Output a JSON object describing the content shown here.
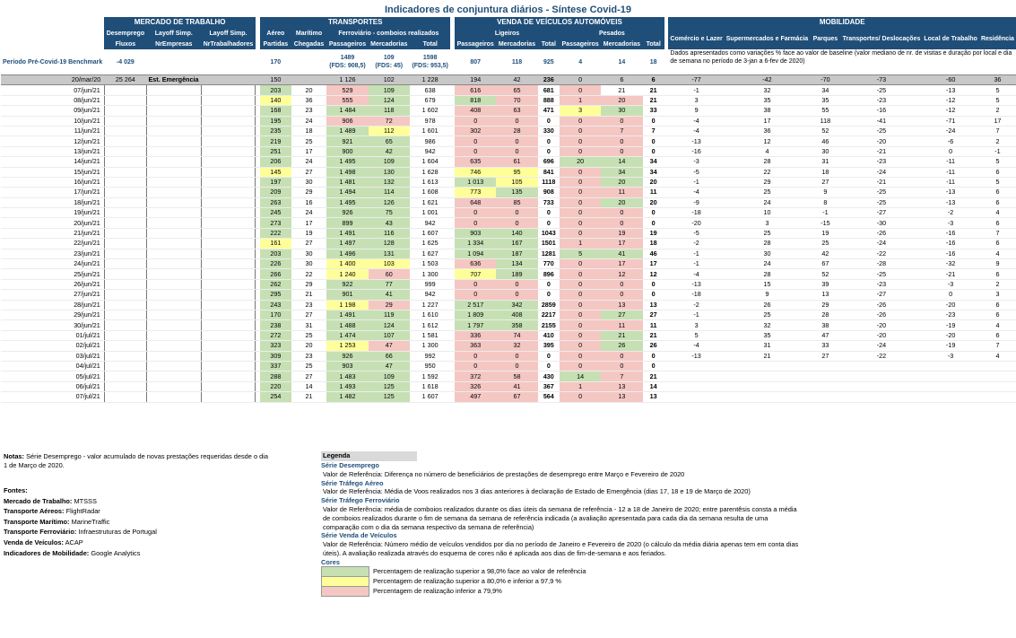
{
  "title": "Indicadores de conjuntura diários - Síntese Covid-19",
  "groups": {
    "mercado": "MERCADO DE TRABALHO",
    "transportes": "TRANSPORTES",
    "venda": "VENDA DE VEÍCULOS AUTOMÓVEIS",
    "mobilidade": "MOBILIDADE"
  },
  "headers": {
    "desemprego": "Desemprego",
    "layoff1": "Layoff Simp.",
    "layoff2": "Layoff Simp.",
    "fluxos": "Fluxos",
    "nrempresas": "NrEmpresas",
    "nrtrabalhadores": "NrTrabalhadores",
    "aereo": "Aéreo",
    "maritimo": "Marítimo",
    "ferroviario": "Ferroviário - comboios realizados",
    "partidas": "Partidas",
    "chegadas": "Chegadas",
    "passageiros": "Passageiros",
    "mercadorias": "Mercadorias",
    "total": "Total",
    "ligeiros": "Ligeiros",
    "pesados": "Pesados",
    "comercio": "Comércio e Lazer",
    "supermercados": "Supermercados e Farmácia",
    "parques": "Parques",
    "transportes_desl": "Transportes/ Deslocações",
    "local_trabalho": "Local de Trabalho",
    "residencia": "Residência"
  },
  "benchmark": {
    "label": "Período Pré-Covid-19 Benchmark",
    "fluxos": "-4 029",
    "aereo": "170",
    "fer_pass": "1489",
    "fer_pass_fds": "(FDS: 908,5)",
    "fer_merc": "109",
    "fer_merc_fds": "(FDS: 45)",
    "fer_total": "1598",
    "fer_total_fds": "(FDS: 953,5)",
    "lig_pass": "807",
    "lig_merc": "118",
    "lig_total": "925",
    "pes_pass": "4",
    "pes_merc": "14",
    "pes_total": "18",
    "mob_note": "Dados apresentados como variações % face ao valor de baseline (valor mediano de nr. de visitas e duração por local e dia de semana no período de 3-jan a 6-fev de 2020)"
  },
  "reference": {
    "date": "20/mar/20",
    "fluxos": "25 264",
    "estado": "Est. Emergência",
    "cells": [
      "150",
      "",
      "1 126",
      "102",
      "1 228",
      "194",
      "42",
      "236",
      "0",
      "6",
      "6",
      "-77",
      "-42",
      "-70",
      "-73",
      "-60",
      "36"
    ]
  },
  "rows": [
    {
      "d": "07/jun/21",
      "v": [
        "203",
        "20",
        "529",
        "109",
        "638",
        "616",
        "65",
        "681",
        "0",
        "21",
        "21",
        "-1",
        "32",
        "34",
        "-25",
        "-13",
        "5"
      ],
      "c": "g__rg_rr__r_"
    },
    {
      "d": "08/jun/21",
      "v": [
        "140",
        "36",
        "555",
        "124",
        "679",
        "818",
        "70",
        "888",
        "1",
        "20",
        "21",
        "3",
        "35",
        "35",
        "-23",
        "-12",
        "5"
      ],
      "c": "y__rg_gr__rr"
    },
    {
      "d": "09/jun/21",
      "v": [
        "168",
        "23",
        "1 484",
        "118",
        "1 602",
        "408",
        "63",
        "471",
        "3",
        "30",
        "33",
        "9",
        "38",
        "55",
        "-16",
        "-12",
        "2"
      ],
      "c": "g__gg_rr__yg"
    },
    {
      "d": "10/jun/21",
      "v": [
        "195",
        "24",
        "906",
        "72",
        "978",
        "0",
        "0",
        "0",
        "0",
        "0",
        "0",
        "-4",
        "17",
        "118",
        "-41",
        "-71",
        "17"
      ],
      "c": "g__rr_rr__rr"
    },
    {
      "d": "11/jun/21",
      "v": [
        "235",
        "18",
        "1 489",
        "112",
        "1 601",
        "302",
        "28",
        "330",
        "0",
        "7",
        "7",
        "-4",
        "36",
        "52",
        "-25",
        "-24",
        "7"
      ],
      "c": "g__gy_rr__rr"
    },
    {
      "d": "12/jun/21",
      "v": [
        "219",
        "25",
        "921",
        "65",
        "986",
        "0",
        "0",
        "0",
        "0",
        "0",
        "0",
        "-13",
        "12",
        "46",
        "-20",
        "-6",
        "2"
      ],
      "c": "g__gg_rr__rr"
    },
    {
      "d": "13/jun/21",
      "v": [
        "251",
        "17",
        "900",
        "42",
        "942",
        "0",
        "0",
        "0",
        "0",
        "0",
        "0",
        "-16",
        "4",
        "30",
        "-21",
        "0",
        "-1"
      ],
      "c": "g__gg_rr__rr"
    },
    {
      "d": "14/jun/21",
      "v": [
        "206",
        "24",
        "1 495",
        "109",
        "1 604",
        "635",
        "61",
        "696",
        "20",
        "14",
        "34",
        "-3",
        "28",
        "31",
        "-23",
        "-11",
        "5"
      ],
      "c": "g__gg_rr__gg"
    },
    {
      "d": "15/jun/21",
      "v": [
        "145",
        "27",
        "1 498",
        "130",
        "1 628",
        "746",
        "95",
        "841",
        "0",
        "34",
        "34",
        "-5",
        "22",
        "18",
        "-24",
        "-11",
        "6"
      ],
      "c": "y__gg_yy__rg"
    },
    {
      "d": "16/jun/21",
      "v": [
        "197",
        "30",
        "1 481",
        "132",
        "1 613",
        "1 013",
        "105",
        "1118",
        "0",
        "20",
        "20",
        "-1",
        "29",
        "27",
        "-21",
        "-11",
        "5"
      ],
      "c": "g__gg_gy__rg"
    },
    {
      "d": "17/jun/21",
      "v": [
        "209",
        "29",
        "1 494",
        "114",
        "1 608",
        "773",
        "135",
        "908",
        "0",
        "11",
        "11",
        "-4",
        "25",
        "9",
        "-25",
        "-13",
        "6"
      ],
      "c": "g__gg_yg__rr"
    },
    {
      "d": "18/jun/21",
      "v": [
        "263",
        "16",
        "1 495",
        "126",
        "1 621",
        "648",
        "85",
        "733",
        "0",
        "20",
        "20",
        "-9",
        "24",
        "8",
        "-25",
        "-13",
        "6"
      ],
      "c": "g__gg_rr__rg"
    },
    {
      "d": "19/jun/21",
      "v": [
        "245",
        "24",
        "926",
        "75",
        "1 001",
        "0",
        "0",
        "0",
        "0",
        "0",
        "0",
        "-18",
        "10",
        "-1",
        "-27",
        "-2",
        "4"
      ],
      "c": "g__gg_rr__rr"
    },
    {
      "d": "20/jun/21",
      "v": [
        "273",
        "17",
        "899",
        "43",
        "942",
        "0",
        "0",
        "0",
        "0",
        "0",
        "0",
        "-20",
        "3",
        "-15",
        "-30",
        "-3",
        "6"
      ],
      "c": "g__gg_rr__rr"
    },
    {
      "d": "21/jun/21",
      "v": [
        "222",
        "19",
        "1 491",
        "116",
        "1 607",
        "903",
        "140",
        "1043",
        "0",
        "19",
        "19",
        "-5",
        "25",
        "19",
        "-26",
        "-16",
        "7"
      ],
      "c": "g__gg_gg__rr"
    },
    {
      "d": "22/jun/21",
      "v": [
        "161",
        "27",
        "1 497",
        "128",
        "1 625",
        "1 334",
        "167",
        "1501",
        "1",
        "17",
        "18",
        "-2",
        "28",
        "25",
        "-24",
        "-16",
        "6"
      ],
      "c": "y__gg_gg__rr"
    },
    {
      "d": "23/jun/21",
      "v": [
        "203",
        "30",
        "1 496",
        "131",
        "1 627",
        "1 094",
        "187",
        "1281",
        "5",
        "41",
        "46",
        "-1",
        "30",
        "42",
        "-22",
        "-16",
        "4"
      ],
      "c": "g__gg_gg__gg"
    },
    {
      "d": "24/jun/21",
      "v": [
        "226",
        "30",
        "1 400",
        "103",
        "1 503",
        "636",
        "134",
        "770",
        "0",
        "17",
        "17",
        "-1",
        "24",
        "67",
        "-28",
        "-32",
        "9"
      ],
      "c": "g__yy_rg__rr"
    },
    {
      "d": "25/jun/21",
      "v": [
        "266",
        "22",
        "1 240",
        "60",
        "1 300",
        "707",
        "189",
        "896",
        "0",
        "12",
        "12",
        "-4",
        "28",
        "52",
        "-25",
        "-21",
        "6"
      ],
      "c": "g__yr_yg__rr"
    },
    {
      "d": "26/jun/21",
      "v": [
        "262",
        "29",
        "922",
        "77",
        "999",
        "0",
        "0",
        "0",
        "0",
        "0",
        "0",
        "-13",
        "15",
        "39",
        "-23",
        "-3",
        "2"
      ],
      "c": "g__gg_rr__rr"
    },
    {
      "d": "27/jun/21",
      "v": [
        "295",
        "21",
        "901",
        "41",
        "942",
        "0",
        "0",
        "0",
        "0",
        "0",
        "0",
        "-18",
        "9",
        "13",
        "-27",
        "0",
        "3"
      ],
      "c": "g__gg_rr__rr"
    },
    {
      "d": "28/jun/21",
      "v": [
        "243",
        "23",
        "1 198",
        "29",
        "1 227",
        "2 517",
        "342",
        "2859",
        "0",
        "13",
        "13",
        "-2",
        "26",
        "29",
        "-26",
        "-20",
        "6"
      ],
      "c": "g__yr_gg__rr"
    },
    {
      "d": "29/jun/21",
      "v": [
        "170",
        "27",
        "1 491",
        "119",
        "1 610",
        "1 809",
        "408",
        "2217",
        "0",
        "27",
        "27",
        "-1",
        "25",
        "28",
        "-26",
        "-23",
        "6"
      ],
      "c": "g__gg_gg__rg"
    },
    {
      "d": "30/jun/21",
      "v": [
        "238",
        "31",
        "1 488",
        "124",
        "1 612",
        "1 797",
        "358",
        "2155",
        "0",
        "11",
        "11",
        "3",
        "32",
        "38",
        "-20",
        "-19",
        "4"
      ],
      "c": "g__gg_gg__rr"
    },
    {
      "d": "01/jul/21",
      "v": [
        "272",
        "25",
        "1 474",
        "107",
        "1 581",
        "336",
        "74",
        "410",
        "0",
        "21",
        "21",
        "5",
        "35",
        "47",
        "-20",
        "-20",
        "6"
      ],
      "c": "g__gg_rr__rg"
    },
    {
      "d": "02/jul/21",
      "v": [
        "323",
        "20",
        "1 253",
        "47",
        "1 300",
        "363",
        "32",
        "395",
        "0",
        "26",
        "26",
        "-4",
        "31",
        "33",
        "-24",
        "-19",
        "7"
      ],
      "c": "g__yr_rr__rg"
    },
    {
      "d": "03/jul/21",
      "v": [
        "309",
        "23",
        "926",
        "66",
        "992",
        "0",
        "0",
        "0",
        "0",
        "0",
        "0",
        "-13",
        "21",
        "27",
        "-22",
        "-3",
        "4"
      ],
      "c": "g__gg_rr__rr"
    },
    {
      "d": "04/jul/21",
      "v": [
        "337",
        "25",
        "903",
        "47",
        "950",
        "0",
        "0",
        "0",
        "0",
        "0",
        "0",
        "",
        "",
        "",
        "",
        "",
        ""
      ],
      "c": "g__gg_rr__rr"
    },
    {
      "d": "05/jul/21",
      "v": [
        "288",
        "27",
        "1 483",
        "109",
        "1 592",
        "372",
        "58",
        "430",
        "14",
        "7",
        "21",
        "",
        "",
        "",
        "",
        "",
        ""
      ],
      "c": "g__gg_rr__gr"
    },
    {
      "d": "06/jul/21",
      "v": [
        "220",
        "14",
        "1 493",
        "125",
        "1 618",
        "326",
        "41",
        "367",
        "1",
        "13",
        "14",
        "",
        "",
        "",
        "",
        "",
        ""
      ],
      "c": "g__gg_rr__rr"
    },
    {
      "d": "07/jul/21",
      "v": [
        "254",
        "21",
        "1 482",
        "125",
        "1 607",
        "497",
        "67",
        "564",
        "0",
        "13",
        "13",
        "",
        "",
        "",
        "",
        "",
        ""
      ],
      "c": "g__gg_rr__rr"
    }
  ],
  "notes": {
    "label": "Notas:",
    "text": "Série Desemprego - valor acumulado de novas prestações requeridas desde o dia 1 de Março de 2020."
  },
  "sources": {
    "title": "Fontes:",
    "items": [
      {
        "label": "Mercado de Trabalho:",
        "value": "MTSSS"
      },
      {
        "label": "Transporte Aéreos:",
        "value": "FlightRadar"
      },
      {
        "label": "Transporte Marítimo:",
        "value": "MarineTraffic"
      },
      {
        "label": "Transporte Ferroviário:",
        "value": "Infraestruturas de Portugal"
      },
      {
        "label": "Venda de Veículos:",
        "value": "ACAP"
      },
      {
        "label": "Indicadores de Mobilidade:",
        "value": "Google Analytics"
      }
    ]
  },
  "legend": {
    "title": "Legenda",
    "sections": [
      {
        "sub": "Série Desemprego",
        "text": "Valor de Referência: Diferença no número de beneficiários de prestações de desemprego entre Março e Fevereiro de 2020"
      },
      {
        "sub": "Série Tráfego Aéreo",
        "text": "Valor de Referência: Média de Voos realizados nos 3 dias anteriores à declaração de Estado de Emergência (dias 17, 18 e 19 de Março de 2020)"
      },
      {
        "sub": "Série Tráfego Ferroviário",
        "text": "Valor de Referência: média de comboios realizados durante os dias úteis da semana de referência - 12 a 18 de Janeiro de 2020; entre parentêsis consta a média de comboios realizados durante o fim de semana da semana de referência indicada (a avaliação apresentada para cada dia da semana resulta de uma comparação com o dia da semana respectivo da semana de referência)"
      },
      {
        "sub": "Série Venda de Veículos",
        "text": "Valor de Referência: Número médio de veículos vendidos por dia no período de Janeiro e Fevereiro de 2020 (o cálculo da média diária apenas tem em conta dias úteis). A avaliação realizada através do esquema de cores não é aplicada aos dias de fim-de-semana e aos feriados."
      }
    ],
    "colors_title": "Cores",
    "colors": [
      {
        "color": "#c6e0b4",
        "text": "Percentagem de realização superior a 98,0% face ao valor de referência"
      },
      {
        "color": "#ffff99",
        "text": "Percentagem de realização superior a 80,0% e inferior a 97,9 %"
      },
      {
        "color": "#f4c7c3",
        "text": "Percentagem de realização inferior a 79,9%"
      }
    ]
  }
}
